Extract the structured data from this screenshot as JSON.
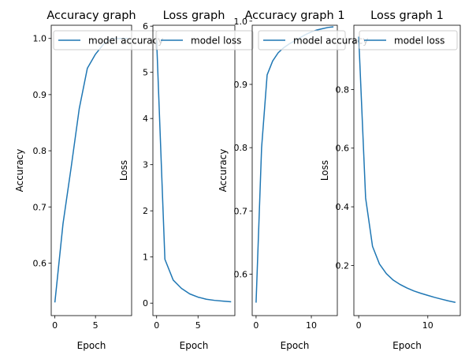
{
  "colors": {
    "line": "#1f77b4",
    "axes": "#000000",
    "legend_border": "#cccccc",
    "background": "#ffffff"
  },
  "chart_data": [
    {
      "type": "line",
      "title": "Accuracy graph",
      "xlabel": "Epoch",
      "ylabel": "Accuracy",
      "xlim": [
        -0.45,
        9.45
      ],
      "ylim": [
        0.5065,
        1.0235
      ],
      "xticks": [
        0,
        5
      ],
      "yticks": [
        0.6,
        0.7,
        0.8,
        0.9,
        1.0
      ],
      "yticklabels": [
        "0.6",
        "0.7",
        "0.8",
        "0.9",
        "1.0"
      ],
      "grid": false,
      "legend": "upper left",
      "series": [
        {
          "name": "model accuracy",
          "x": [
            0,
            1,
            2,
            3,
            4,
            5,
            6,
            7,
            8,
            9
          ],
          "y": [
            0.53,
            0.67,
            0.77,
            0.875,
            0.947,
            0.972,
            0.99,
            1.0,
            1.0,
            1.0
          ]
        }
      ]
    },
    {
      "type": "line",
      "title": "Loss graph",
      "xlabel": "Epoch",
      "ylabel": "Loss",
      "xlim": [
        -0.45,
        9.45
      ],
      "ylim": [
        -0.27,
        6.02
      ],
      "xticks": [
        0,
        5
      ],
      "yticks": [
        0,
        1,
        2,
        3,
        4,
        5,
        6
      ],
      "yticklabels": [
        "0",
        "1",
        "2",
        "3",
        "4",
        "5",
        "6"
      ],
      "grid": false,
      "legend": "upper right",
      "series": [
        {
          "name": "model loss",
          "x": [
            0,
            1,
            2,
            3,
            4,
            5,
            6,
            7,
            8,
            9
          ],
          "y": [
            5.7,
            0.95,
            0.5,
            0.32,
            0.2,
            0.13,
            0.085,
            0.06,
            0.045,
            0.03
          ]
        }
      ]
    },
    {
      "type": "line",
      "title": "Accuracy graph 1",
      "xlabel": "Epoch",
      "ylabel": "Accuracy",
      "xlim": [
        -0.7,
        14.7
      ],
      "ylim": [
        0.5345,
        0.9935
      ],
      "xticks": [
        0,
        10
      ],
      "yticks": [
        0.6,
        0.7,
        0.8,
        0.9,
        1.0
      ],
      "yticklabels": [
        "0.6",
        "0.7",
        "0.8",
        "0.9",
        "1.0"
      ],
      "grid": false,
      "legend": "upper right",
      "series": [
        {
          "name": "model accuracy",
          "x": [
            0,
            1,
            2,
            3,
            4,
            5,
            6,
            7,
            8,
            9,
            10,
            11,
            12,
            13,
            14
          ],
          "y": [
            0.555,
            0.8,
            0.915,
            0.937,
            0.95,
            0.958,
            0.964,
            0.969,
            0.974,
            0.979,
            0.983,
            0.986,
            0.988,
            0.99,
            0.991
          ]
        }
      ]
    },
    {
      "type": "line",
      "title": "Loss graph 1",
      "xlabel": "Epoch",
      "ylabel": "Loss",
      "xlim": [
        -0.7,
        14.7
      ],
      "ylim": [
        0.029,
        1.019
      ],
      "xticks": [
        0,
        10
      ],
      "yticks": [
        0.2,
        0.4,
        0.6,
        0.8
      ],
      "yticklabels": [
        "0.2",
        "0.4",
        "0.6",
        "0.8"
      ],
      "grid": false,
      "legend": "upper right",
      "series": [
        {
          "name": "model loss",
          "x": [
            0,
            1,
            2,
            3,
            4,
            5,
            6,
            7,
            8,
            9,
            10,
            11,
            12,
            13,
            14
          ],
          "y": [
            0.98,
            0.43,
            0.265,
            0.205,
            0.172,
            0.15,
            0.135,
            0.123,
            0.113,
            0.105,
            0.098,
            0.091,
            0.085,
            0.079,
            0.074
          ]
        }
      ]
    }
  ]
}
